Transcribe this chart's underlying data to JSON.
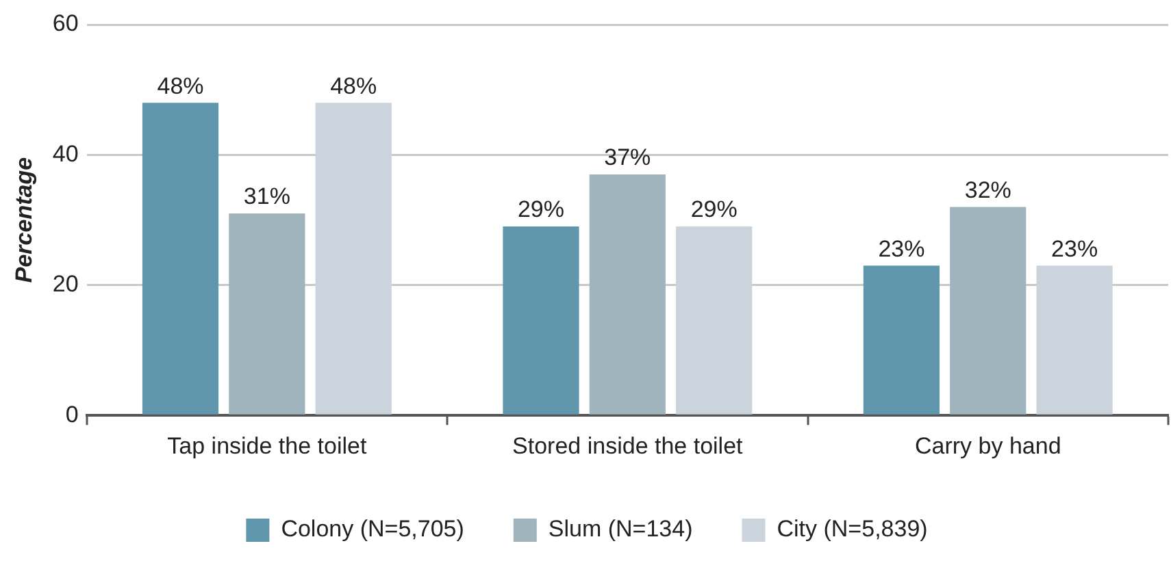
{
  "chart_data": {
    "type": "bar",
    "ylabel": "Percentage",
    "categories": [
      "Tap inside the toilet",
      "Stored inside the toilet",
      "Carry by hand"
    ],
    "series": [
      {
        "name": "Colony (N=5,705)",
        "color": "#6197ad",
        "values": [
          48,
          29,
          23
        ],
        "value_labels": [
          "48%",
          "29%",
          "23%"
        ]
      },
      {
        "name": "Slum (N=134)",
        "color": "#9fb4bd",
        "values": [
          31,
          37,
          32
        ],
        "value_labels": [
          "31%",
          "37%",
          "32%"
        ]
      },
      {
        "name": "City (N=5,839)",
        "color": "#cbd3dc",
        "values": [
          48,
          29,
          23
        ],
        "value_labels": [
          "48%",
          "29%",
          "23%"
        ]
      }
    ],
    "ylim": [
      0,
      60
    ],
    "yticks": [
      0,
      20,
      40,
      60
    ],
    "grid": "y",
    "legend": "bottom"
  }
}
